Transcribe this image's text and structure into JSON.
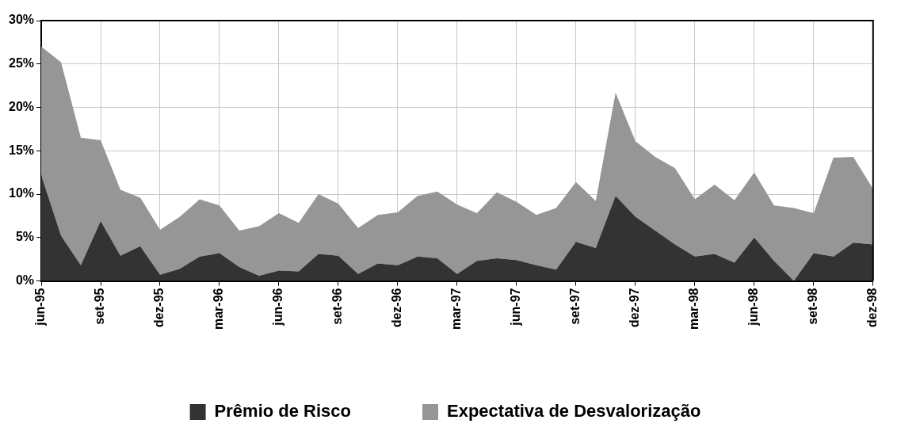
{
  "chart_data": {
    "type": "area",
    "stacked": true,
    "categories": [
      "jun-95",
      null,
      null,
      "set-95",
      null,
      null,
      "dez-95",
      null,
      null,
      "mar-96",
      null,
      null,
      "jun-96",
      null,
      null,
      "set-96",
      null,
      null,
      "dez-96",
      null,
      null,
      "mar-97",
      null,
      null,
      "jun-97",
      null,
      null,
      "set-97",
      null,
      null,
      "dez-97",
      null,
      null,
      "mar-98",
      null,
      null,
      "jun-98",
      null,
      null,
      "set-98",
      null,
      null,
      "dez-98"
    ],
    "series": [
      {
        "name": "Prêmio de Risco",
        "color": "#333333",
        "values": [
          12.2,
          5.2,
          1.8,
          6.9,
          2.9,
          4.0,
          0.7,
          1.4,
          2.8,
          3.2,
          1.6,
          0.6,
          1.2,
          1.1,
          3.1,
          2.9,
          0.8,
          2.0,
          1.8,
          2.8,
          2.6,
          0.8,
          2.3,
          2.6,
          2.4,
          1.8,
          1.3,
          4.5,
          3.8,
          9.8,
          7.4,
          5.8,
          4.2,
          2.8,
          3.1,
          2.1,
          5.0,
          2.3,
          0,
          3.2,
          2.8,
          4.4,
          4.2
        ]
      },
      {
        "name": "Expectativa de Desvalorização",
        "color": "#969696",
        "values": [
          14.8,
          20.0,
          14.7,
          9.3,
          7.6,
          5.6,
          5.2,
          6.0,
          6.6,
          5.5,
          4.2,
          5.7,
          6.6,
          5.6,
          6.9,
          6.0,
          5.3,
          5.6,
          6.1,
          7.0,
          7.7,
          8.0,
          5.5,
          7.6,
          6.7,
          5.8,
          7.1,
          6.9,
          5.4,
          11.9,
          8.7,
          8.5,
          8.8,
          6.6,
          8.0,
          7.2,
          7.5,
          6.4,
          8.4,
          4.6,
          11.4,
          9.9,
          6.4
        ]
      }
    ],
    "ylim": [
      0,
      30
    ],
    "yticks": [
      {
        "value": 0,
        "label": "0%"
      },
      {
        "value": 5,
        "label": "5%"
      },
      {
        "value": 10,
        "label": "10%"
      },
      {
        "value": 15,
        "label": "15%"
      },
      {
        "value": 20,
        "label": "20%"
      },
      {
        "value": 25,
        "label": "25%"
      },
      {
        "value": 30,
        "label": "30%"
      }
    ],
    "grid": true,
    "legend": "bottom"
  }
}
